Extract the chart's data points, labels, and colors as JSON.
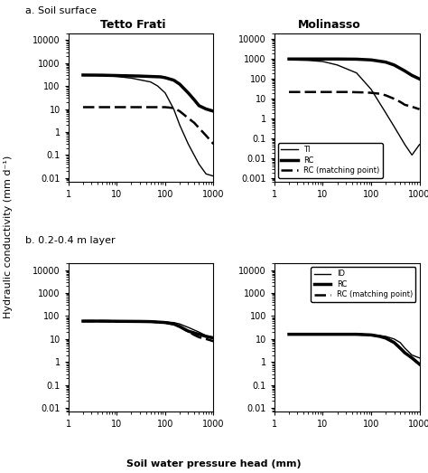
{
  "col_titles": [
    "Tetto Frati",
    "Molinasso"
  ],
  "row_labels": [
    "a. Soil surface",
    "b. 0.2-0.4 m layer"
  ],
  "xlabel": "Soil water pressure head (mm)",
  "ylabel": "Hydraulic conductivity (mm d⁻¹)",
  "tf_surface_TI": {
    "x": [
      2,
      3,
      5,
      10,
      20,
      50,
      70,
      100,
      150,
      200,
      300,
      500,
      700,
      1000
    ],
    "y": [
      300,
      295,
      285,
      260,
      220,
      150,
      100,
      50,
      10,
      2,
      0.3,
      0.04,
      0.015,
      0.012
    ]
  },
  "tf_surface_RC": {
    "x": [
      2,
      5,
      10,
      30,
      80,
      100,
      150,
      200,
      300,
      400,
      500,
      700,
      1000
    ],
    "y": [
      300,
      295,
      285,
      270,
      250,
      230,
      180,
      120,
      50,
      25,
      14,
      10,
      8
    ]
  },
  "tf_surface_RCmp": {
    "x": [
      2,
      5,
      10,
      30,
      70,
      100,
      150,
      200,
      300,
      400,
      500,
      700,
      1000
    ],
    "y": [
      12,
      12,
      12,
      12,
      12,
      12,
      11,
      8,
      4,
      2.5,
      1.5,
      0.7,
      0.3
    ]
  },
  "mol_surface_TI": {
    "x": [
      2,
      3,
      5,
      10,
      20,
      50,
      100,
      200,
      300,
      500,
      700,
      1000
    ],
    "y": [
      900,
      880,
      850,
      750,
      500,
      200,
      30,
      2,
      0.4,
      0.05,
      0.015,
      0.05
    ]
  },
  "mol_surface_RC": {
    "x": [
      2,
      3,
      5,
      10,
      20,
      50,
      100,
      200,
      300,
      500,
      700,
      1000
    ],
    "y": [
      1000,
      1000,
      1000,
      1000,
      1000,
      980,
      900,
      700,
      500,
      250,
      150,
      100
    ]
  },
  "mol_surface_RCmp": {
    "x": [
      2,
      5,
      10,
      30,
      70,
      100,
      150,
      200,
      300,
      400,
      500,
      700,
      1000
    ],
    "y": [
      22,
      22,
      22,
      22,
      21,
      20,
      18,
      15,
      10,
      7,
      5,
      4,
      3
    ]
  },
  "tf_layer_ID": {
    "x": [
      2,
      5,
      10,
      30,
      50,
      100,
      150,
      200,
      300,
      500,
      700,
      1000
    ],
    "y": [
      60,
      60,
      59,
      58,
      57,
      55,
      52,
      45,
      32,
      20,
      14,
      12
    ]
  },
  "tf_layer_RC": {
    "x": [
      2,
      5,
      10,
      30,
      50,
      100,
      150,
      200,
      300,
      500,
      700,
      1000
    ],
    "y": [
      60,
      60,
      59,
      58,
      57,
      52,
      45,
      35,
      22,
      16,
      13,
      11
    ]
  },
  "tf_layer_RCmp": {
    "x": [
      2,
      5,
      10,
      30,
      50,
      100,
      150,
      200,
      300,
      400,
      500,
      700,
      1000
    ],
    "y": [
      60,
      60,
      59,
      58,
      57,
      52,
      44,
      34,
      21,
      15,
      12,
      10,
      8
    ]
  },
  "mol_layer_ID": {
    "x": [
      2,
      5,
      10,
      30,
      50,
      100,
      150,
      200,
      300,
      400,
      500,
      700,
      1000
    ],
    "y": [
      16,
      16,
      16,
      16,
      16,
      15,
      14,
      13,
      10,
      7,
      4,
      2,
      1.5
    ]
  },
  "mol_layer_RC": {
    "x": [
      2,
      5,
      10,
      30,
      50,
      100,
      150,
      200,
      300,
      400,
      500,
      700,
      1000
    ],
    "y": [
      16,
      16,
      16,
      16,
      16,
      15,
      13,
      11,
      7,
      4,
      2.5,
      1.5,
      0.8
    ]
  },
  "mol_layer_RCmp": {
    "x": [
      2,
      5,
      10,
      30,
      50,
      100,
      150,
      200,
      300,
      400,
      500,
      700,
      1000
    ],
    "y": [
      16,
      16,
      16,
      16,
      16,
      15,
      13,
      11,
      7,
      4,
      2.5,
      1.5,
      0.8
    ]
  },
  "legend_top_labels": [
    "TI",
    "RC",
    "RC (matching point)"
  ],
  "legend_bot_labels": [
    "ID",
    "RC",
    "RC (matching point)"
  ]
}
